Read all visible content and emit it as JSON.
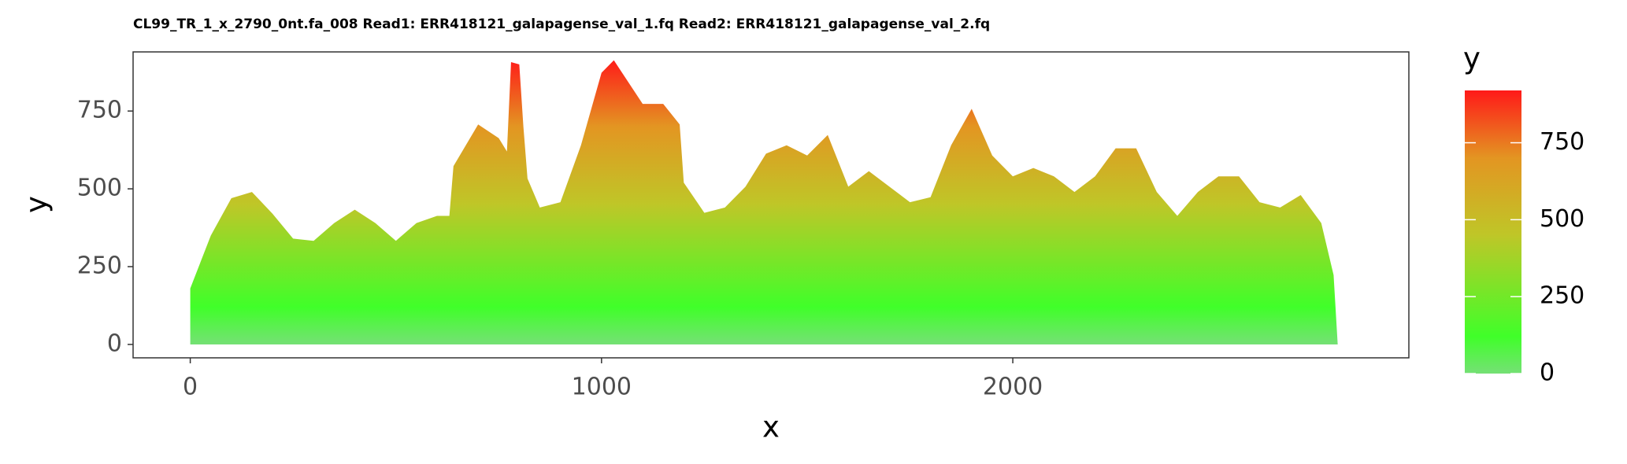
{
  "chart_data": {
    "type": "area",
    "title": "CL99_TR_1_x_2790_0nt.fa_008 Read1: ERR418121_galapagense_val_1.fq Read2: ERR418121_galapagense_val_2.fq",
    "x_label": "x",
    "y_label": "y",
    "x": [
      0,
      50,
      100,
      150,
      200,
      250,
      300,
      350,
      400,
      450,
      500,
      550,
      600,
      630,
      640,
      700,
      750,
      770,
      780,
      800,
      810,
      820,
      850,
      900,
      950,
      1000,
      1030,
      1050,
      1100,
      1150,
      1190,
      1200,
      1250,
      1300,
      1350,
      1400,
      1450,
      1500,
      1550,
      1600,
      1650,
      1700,
      1750,
      1800,
      1850,
      1900,
      1950,
      2000,
      2050,
      2100,
      2150,
      2200,
      2250,
      2300,
      2350,
      2400,
      2450,
      2500,
      2550,
      2600,
      2650,
      2700,
      2750,
      2780,
      2790
    ],
    "values": [
      180,
      350,
      470,
      490,
      420,
      340,
      333,
      390,
      433,
      390,
      333,
      390,
      413,
      413,
      573,
      707,
      663,
      620,
      907,
      900,
      700,
      533,
      440,
      457,
      640,
      873,
      913,
      873,
      773,
      773,
      707,
      520,
      423,
      440,
      507,
      613,
      640,
      607,
      673,
      507,
      557,
      507,
      457,
      473,
      640,
      757,
      607,
      540,
      567,
      540,
      490,
      540,
      630,
      630,
      490,
      413,
      490,
      540,
      540,
      457,
      440,
      480,
      390,
      223,
      0
    ],
    "xlim": [
      -139,
      2963
    ],
    "ylim": [
      -43,
      940
    ],
    "xticks": [
      0,
      1000,
      2000
    ],
    "yticks": [
      0,
      250,
      500,
      750
    ],
    "grid": false,
    "legend": {
      "title": "y",
      "limits": [
        0,
        920
      ],
      "ticks": [
        0,
        250,
        500,
        750
      ],
      "stops": [
        0,
        120,
        450,
        700,
        920
      ],
      "colors": [
        "#66dd66",
        "#2bff12",
        "#b8c010",
        "#e08a0a",
        "#ff0000"
      ]
    }
  }
}
